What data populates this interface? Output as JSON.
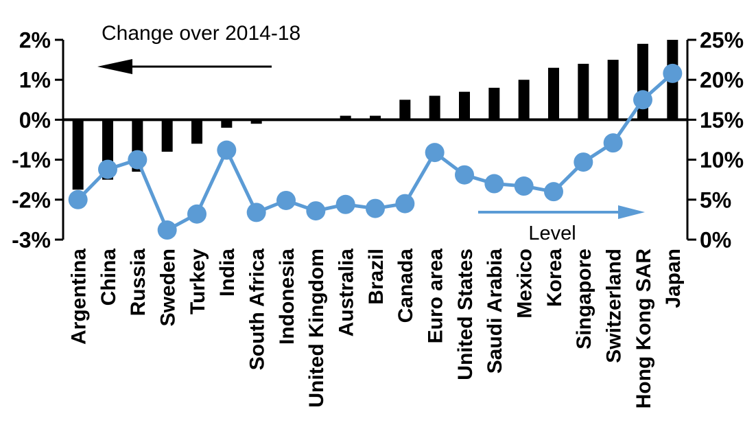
{
  "chart_data": {
    "type": "combo",
    "title": "",
    "categories": [
      "Argentina",
      "China",
      "Russia",
      "Sweden",
      "Turkey",
      "India",
      "South Africa",
      "Indonesia",
      "United Kingdom",
      "Australia",
      "Brazil",
      "Canada",
      "Euro area",
      "United States",
      "Saudi Arabia",
      "Mexico",
      "Korea",
      "Singapore",
      "Switzerland",
      "Hong Kong SAR",
      "Japan"
    ],
    "series": [
      {
        "name": "Change over 2014-18",
        "type": "bar",
        "axis": "left",
        "unit": "%",
        "values": [
          -1.75,
          -1.5,
          -1.3,
          -0.8,
          -0.6,
          -0.2,
          -0.1,
          0,
          0,
          0.1,
          0.1,
          0.5,
          0.6,
          0.7,
          0.8,
          1.0,
          1.3,
          1.4,
          1.5,
          1.9,
          2.0
        ]
      },
      {
        "name": "Level",
        "type": "line",
        "axis": "right",
        "unit": "%",
        "values": [
          5.0,
          8.8,
          10.0,
          1.2,
          3.2,
          11.2,
          3.4,
          4.9,
          3.6,
          4.4,
          3.9,
          4.5,
          10.9,
          8.1,
          7.0,
          6.7,
          6.0,
          9.7,
          12.1,
          17.5,
          20.8
        ]
      }
    ],
    "left_axis": {
      "tick_labels": [
        "2%",
        "1%",
        "0%",
        "-1%",
        "-2%",
        "-3%"
      ],
      "tick_values": [
        2,
        1,
        0,
        -1,
        -2,
        -3
      ],
      "min": -3,
      "max": 2
    },
    "right_axis": {
      "tick_labels": [
        "25%",
        "20%",
        "15%",
        "10%",
        "5%",
        "0%"
      ],
      "tick_values": [
        25,
        20,
        15,
        10,
        5,
        0
      ],
      "min": 0,
      "max": 25
    },
    "annotations": {
      "bar_label": "Change over 2014-18",
      "line_label": "Level"
    },
    "legend_position": "none",
    "grid": false
  },
  "colors": {
    "bar": "#000000",
    "line": "#5B9BD5",
    "background": "#FFFFFF",
    "text": "#000000"
  }
}
